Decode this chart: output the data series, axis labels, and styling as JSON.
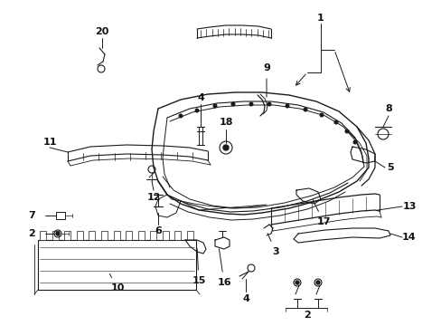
{
  "bg_color": "#ffffff",
  "line_color": "#1a1a1a",
  "text_color": "#111111",
  "fig_width": 4.89,
  "fig_height": 3.6,
  "dpi": 100,
  "font_size": 8.0
}
